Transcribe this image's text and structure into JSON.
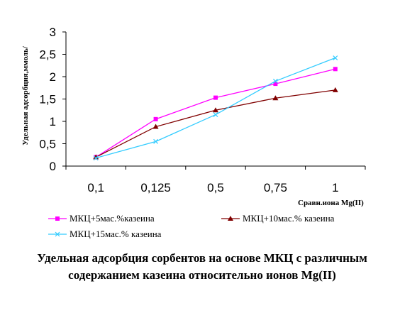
{
  "chart_data": {
    "type": "line",
    "title": "Удельная адсорбция сорбентов на основе МКЦ с различным содержанием казеина относительно ионов Mg(II)",
    "xlabel": "Сравн.иона Mg(II)",
    "ylabel": "Удельная адсорбция,ммоль/",
    "categories": [
      "0,1",
      "0,125",
      "0,5",
      "0,75",
      "1"
    ],
    "yticks": [
      "0",
      "0,5",
      "1",
      "1,5",
      "2",
      "2,5",
      "3"
    ],
    "ylim": [
      0,
      3
    ],
    "grid": false,
    "legend_position": "bottom",
    "series": [
      {
        "name": "МКЦ+5мас.%казеина",
        "values": [
          0.2,
          1.05,
          1.53,
          1.84,
          2.17
        ],
        "color": "#ff00ff",
        "marker": "square"
      },
      {
        "name": "МКЦ+10мас.% казеина",
        "values": [
          0.2,
          0.88,
          1.25,
          1.52,
          1.7
        ],
        "color": "#800000",
        "marker": "triangle"
      },
      {
        "name": "МКЦ+15мас.% казеина",
        "values": [
          0.18,
          0.55,
          1.15,
          1.9,
          2.42
        ],
        "color": "#33ccff",
        "marker": "x"
      }
    ]
  }
}
